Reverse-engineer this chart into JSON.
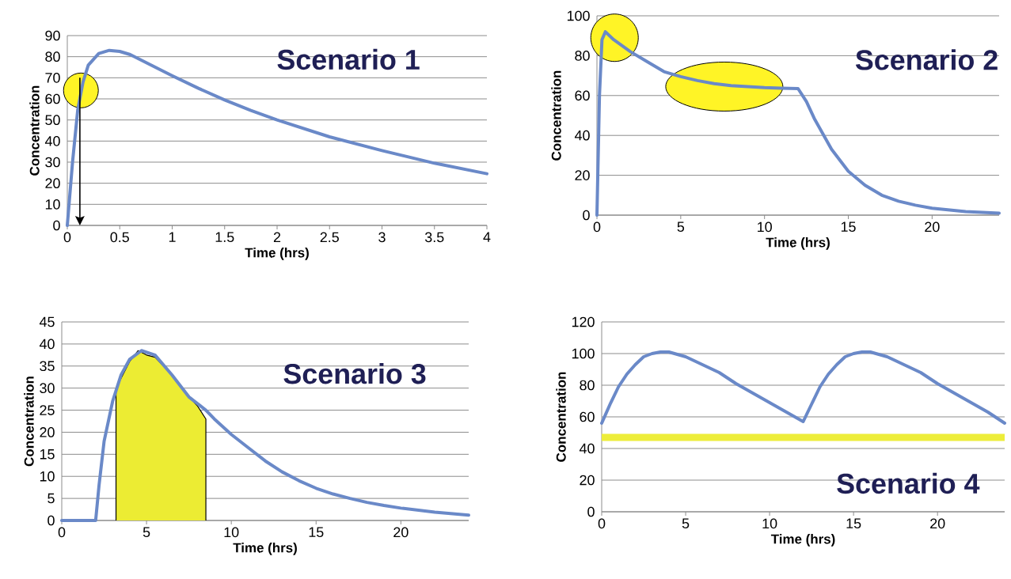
{
  "chart_data": [
    {
      "type": "line",
      "title": "Scenario 1",
      "xlabel": "Time (hrs)",
      "ylabel": "Concentration",
      "grid": "y",
      "xlim": [
        0,
        4
      ],
      "ylim": [
        0,
        90
      ],
      "xticks": [
        0,
        0.5,
        1,
        1.5,
        2,
        2.5,
        3,
        3.5,
        4
      ],
      "yticks": [
        0,
        10,
        20,
        30,
        40,
        50,
        60,
        70,
        80,
        90
      ],
      "x": [
        0,
        0.05,
        0.1,
        0.15,
        0.2,
        0.3,
        0.4,
        0.5,
        0.6,
        0.8,
        1,
        1.25,
        1.5,
        1.75,
        2,
        2.5,
        3,
        3.5,
        4
      ],
      "series": [
        {
          "color": "#6a89c8",
          "values": [
            0,
            30,
            55,
            68,
            76,
            81.5,
            83,
            82.5,
            81,
            76,
            71,
            65,
            59.5,
            54.5,
            50,
            42,
            35.5,
            29.5,
            24.5
          ]
        }
      ]
    },
    {
      "type": "line",
      "title": "Scenario 2",
      "xlabel": "Time (hrs)",
      "ylabel": "Concentration",
      "grid": "y",
      "xlim": [
        0,
        24
      ],
      "ylim": [
        0,
        100
      ],
      "xticks": [
        0,
        5,
        10,
        15,
        20
      ],
      "yticks": [
        0,
        20,
        40,
        60,
        80,
        100
      ],
      "x": [
        0,
        0.15,
        0.3,
        0.5,
        1,
        2,
        3,
        4,
        5,
        6,
        7,
        8,
        9,
        10,
        11,
        12,
        12.5,
        13,
        14,
        15,
        16,
        17,
        18,
        19,
        20,
        22,
        24
      ],
      "series": [
        {
          "color": "#6a89c8",
          "values": [
            0,
            60,
            88,
            92,
            88,
            82,
            77,
            72,
            69.5,
            67.5,
            66,
            65,
            64.5,
            64,
            63.7,
            63.5,
            57,
            48,
            33,
            22,
            15,
            10,
            7,
            5,
            3.5,
            1.8,
            1
          ]
        }
      ]
    },
    {
      "type": "line",
      "title": "Scenario 3",
      "xlabel": "Time (hrs)",
      "ylabel": "Concentration",
      "grid": "y",
      "xlim": [
        0,
        24
      ],
      "ylim": [
        0,
        45
      ],
      "xticks": [
        0,
        5,
        10,
        15,
        20
      ],
      "yticks": [
        0,
        5,
        10,
        15,
        20,
        25,
        30,
        35,
        40,
        45
      ],
      "x": [
        0,
        2,
        2.2,
        2.5,
        3,
        3.5,
        4,
        4.7,
        5.5,
        6.5,
        7.5,
        8.5,
        9,
        10,
        11,
        12,
        13,
        14,
        15,
        16,
        17,
        18,
        19,
        20,
        22,
        24
      ],
      "series": [
        {
          "type": "area",
          "color": "#ecec33",
          "x": [
            3.2,
            3.2,
            4,
            4.5,
            5,
            5.5,
            6.5,
            7.5,
            8,
            8.5,
            8.5
          ],
          "values": [
            0,
            30,
            36,
            38.5,
            37.5,
            37,
            33,
            28,
            26,
            23,
            0
          ]
        },
        {
          "color": "#6a89c8",
          "values": [
            0,
            0,
            8,
            18,
            27,
            33,
            36.5,
            38.5,
            37.5,
            33,
            28,
            25,
            23,
            19.5,
            16.5,
            13.5,
            11,
            9,
            7.3,
            6,
            5,
            4.1,
            3.4,
            2.8,
            1.9,
            1.2
          ]
        }
      ]
    },
    {
      "type": "line",
      "title": "Scenario 4",
      "xlabel": "Time (hrs)",
      "ylabel": "Concentration",
      "grid": "y",
      "xlim": [
        0,
        24
      ],
      "ylim": [
        0,
        120
      ],
      "xticks": [
        0,
        5,
        10,
        15,
        20
      ],
      "yticks": [
        0,
        20,
        40,
        60,
        80,
        100,
        120
      ],
      "x": [
        0,
        0.5,
        1,
        1.5,
        2,
        2.5,
        3,
        3.5,
        4,
        5,
        6,
        7,
        8,
        9,
        10,
        11,
        12,
        12.5,
        13,
        13.5,
        14,
        14.5,
        15,
        15.5,
        16,
        17,
        18,
        19,
        20,
        21,
        22,
        23,
        24
      ],
      "series": [
        {
          "color": "#6a89c8",
          "values": [
            56,
            68,
            79,
            87,
            93,
            98,
            100,
            101,
            101,
            98,
            93,
            88,
            81,
            75,
            69,
            63,
            57,
            68,
            79,
            87,
            93,
            98,
            100,
            101,
            101,
            98,
            93,
            88,
            81,
            75,
            69,
            63,
            56
          ]
        }
      ],
      "ref_lines": [
        {
          "axis": "y",
          "value": 47,
          "color": "#eded3a"
        }
      ]
    }
  ]
}
